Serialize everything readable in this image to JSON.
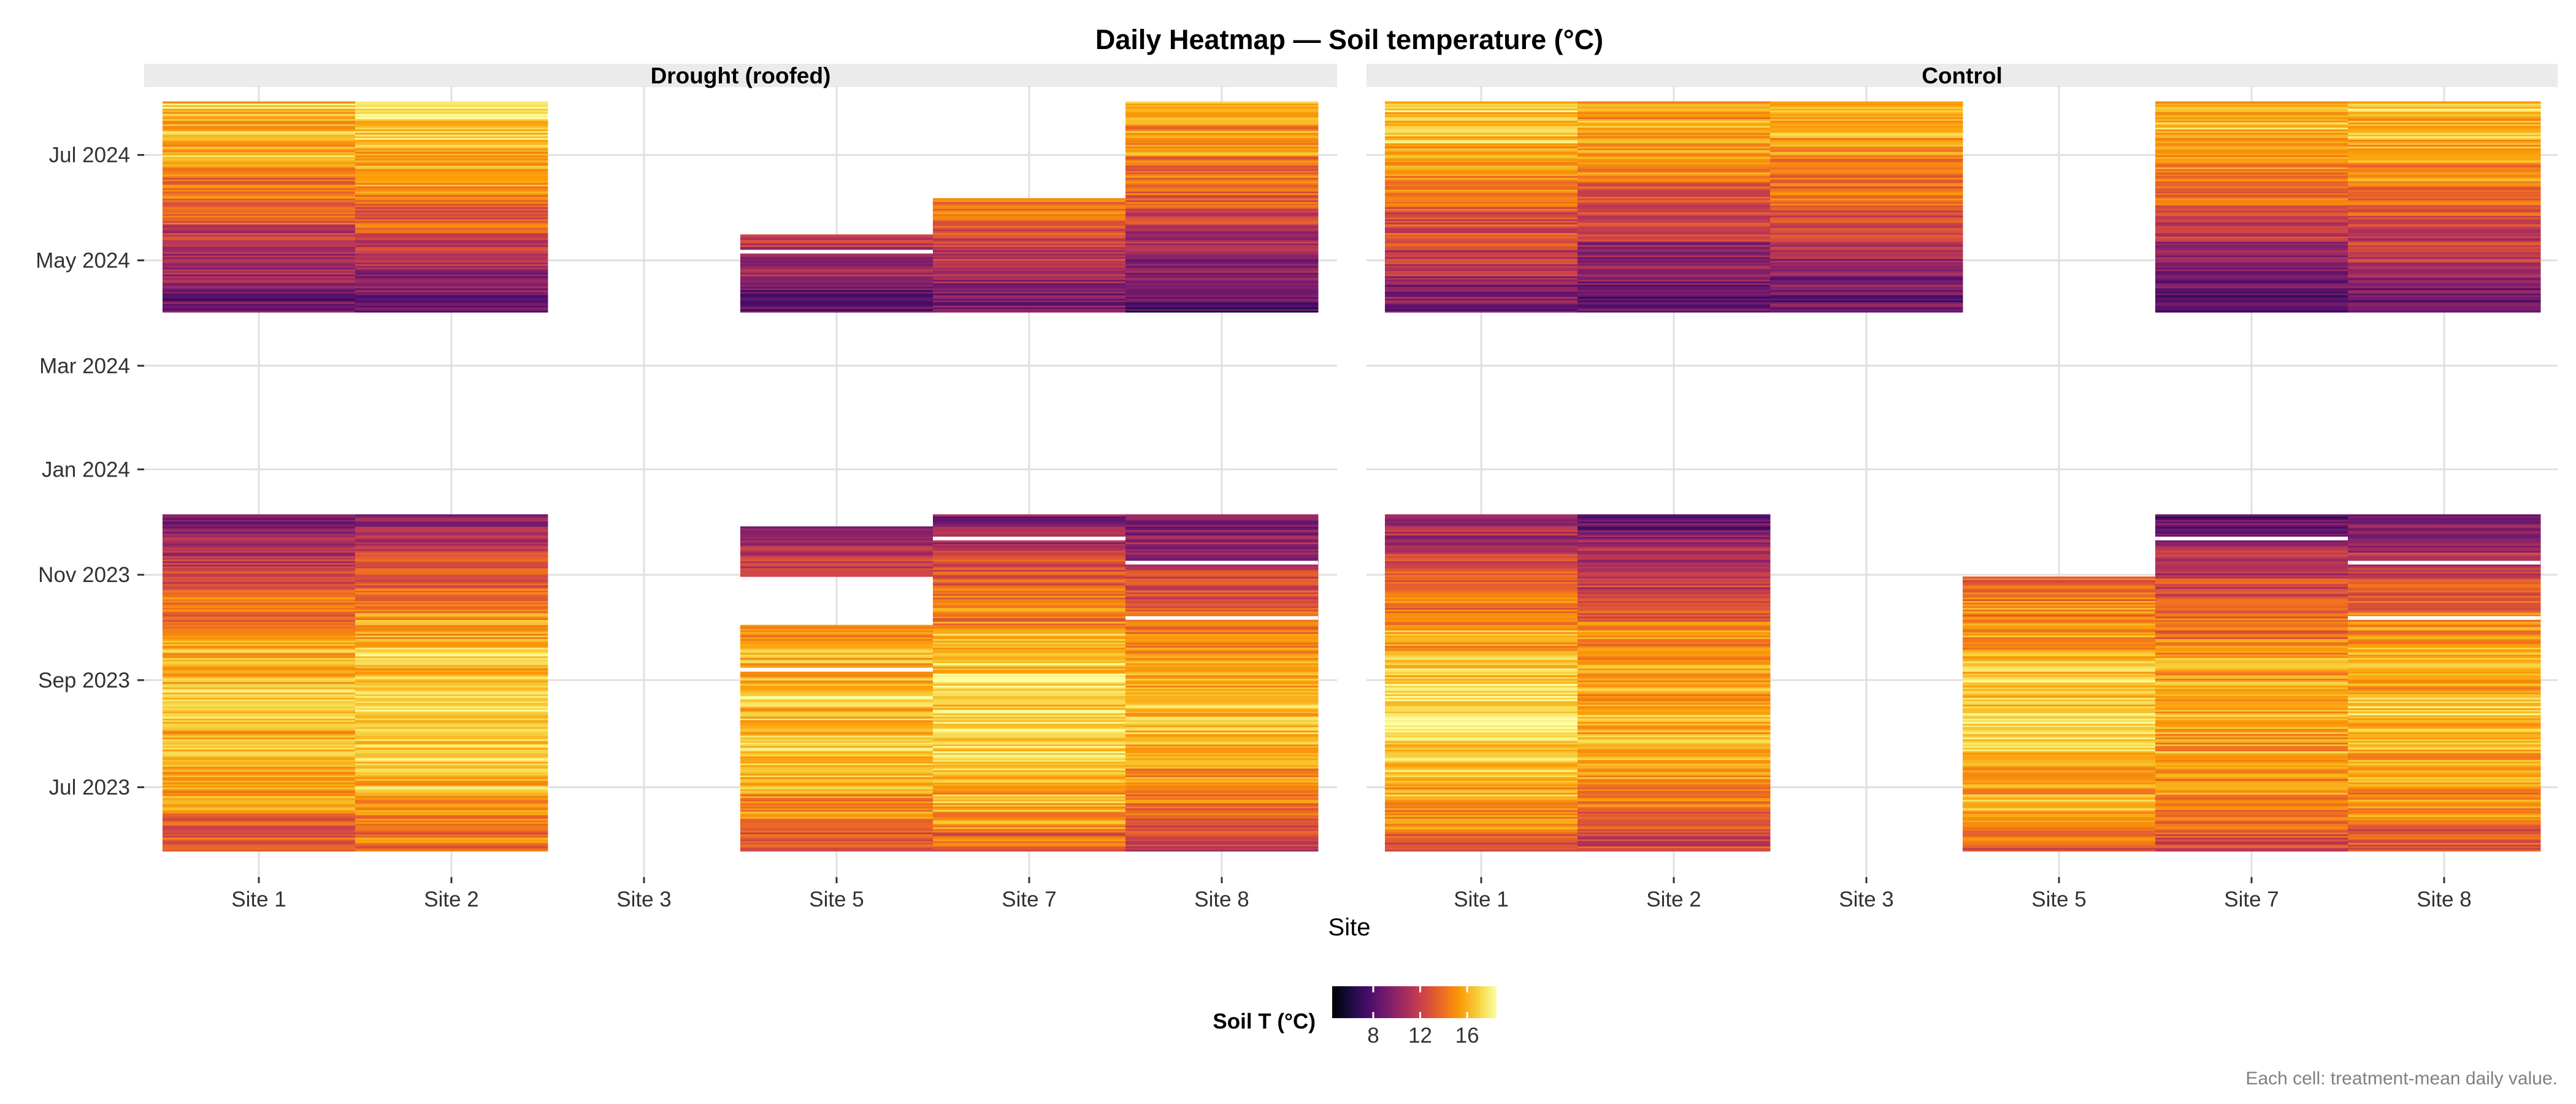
{
  "chart_data": {
    "type": "heatmap",
    "title": "Daily Heatmap — Soil temperature (°C)",
    "xlabel": "Site",
    "ylabel": "",
    "caption": "Each cell: treatment-mean daily value.",
    "legend": {
      "title": "Soil T (°C)",
      "ticks": [
        8,
        12,
        16
      ],
      "range": [
        4.5,
        18.5
      ],
      "position": "bottom"
    },
    "color_scale": "inferno",
    "colors": [
      "#000004",
      "#1b0c41",
      "#4a0c6b",
      "#781c6d",
      "#a52c60",
      "#cf4446",
      "#ed6925",
      "#fb9b06",
      "#f7d13d",
      "#fcffa4"
    ],
    "grid": true,
    "y_axis": {
      "type": "date",
      "range": [
        "2023-05-10",
        "2024-08-10"
      ],
      "ticks": [
        {
          "date": "2023-07-01",
          "label": "Jul 2023"
        },
        {
          "date": "2023-09-01",
          "label": "Sep 2023"
        },
        {
          "date": "2023-11-01",
          "label": "Nov 2023"
        },
        {
          "date": "2024-01-01",
          "label": "Jan 2024"
        },
        {
          "date": "2024-03-01",
          "label": "Mar 2024"
        },
        {
          "date": "2024-05-01",
          "label": "May 2024"
        },
        {
          "date": "2024-07-01",
          "label": "Jul 2024"
        }
      ]
    },
    "categories": [
      "Site 1",
      "Site 2",
      "Site 3",
      "Site 5",
      "Site 7",
      "Site 8"
    ],
    "panels": [
      {
        "name": "Drought (roofed)",
        "columns": [
          {
            "site": "Site 1",
            "ranges": [
              [
                "2023-05-25",
                "2023-12-05"
              ],
              [
                "2024-04-01",
                "2024-07-31"
              ]
            ]
          },
          {
            "site": "Site 2",
            "ranges": [
              [
                "2023-05-25",
                "2023-12-05"
              ],
              [
                "2024-04-01",
                "2024-07-31"
              ]
            ]
          },
          {
            "site": "Site 3",
            "ranges": []
          },
          {
            "site": "Site 5",
            "ranges": [
              [
                "2023-05-25",
                "2023-10-02"
              ],
              [
                "2023-10-31",
                "2023-11-28"
              ],
              [
                "2024-04-01",
                "2024-05-15"
              ]
            ],
            "gaps": [
              "2023-09-07",
              "2024-05-06"
            ]
          },
          {
            "site": "Site 7",
            "ranges": [
              [
                "2023-05-25",
                "2023-12-05"
              ],
              [
                "2024-04-01",
                "2024-06-05"
              ]
            ],
            "gaps": [
              "2023-11-22"
            ]
          },
          {
            "site": "Site 8",
            "ranges": [
              [
                "2023-05-25",
                "2023-12-05"
              ],
              [
                "2024-04-01",
                "2024-07-31"
              ]
            ],
            "gaps": [
              "2023-10-07",
              "2023-11-08"
            ]
          }
        ]
      },
      {
        "name": "Control",
        "columns": [
          {
            "site": "Site 1",
            "ranges": [
              [
                "2023-05-25",
                "2023-12-05"
              ],
              [
                "2024-04-01",
                "2024-07-31"
              ]
            ]
          },
          {
            "site": "Site 2",
            "ranges": [
              [
                "2023-05-25",
                "2023-12-05"
              ],
              [
                "2024-04-01",
                "2024-07-31"
              ]
            ]
          },
          {
            "site": "Site 3",
            "ranges": [
              [
                "2024-04-01",
                "2024-07-31"
              ]
            ]
          },
          {
            "site": "Site 5",
            "ranges": [
              [
                "2023-05-25",
                "2023-10-30"
              ]
            ]
          },
          {
            "site": "Site 7",
            "ranges": [
              [
                "2023-05-25",
                "2023-12-05"
              ],
              [
                "2024-04-01",
                "2024-07-31"
              ]
            ],
            "gaps": [
              "2023-11-22"
            ]
          },
          {
            "site": "Site 8",
            "ranges": [
              [
                "2023-05-25",
                "2023-12-05"
              ],
              [
                "2024-04-01",
                "2024-07-31"
              ]
            ],
            "gaps": [
              "2023-10-07",
              "2023-11-08"
            ]
          }
        ]
      }
    ]
  }
}
